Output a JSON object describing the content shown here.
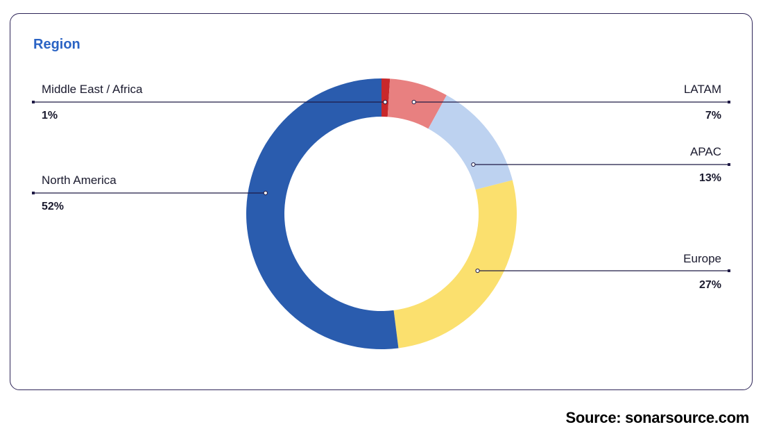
{
  "chart_data": {
    "type": "pie",
    "variant": "donut",
    "title": "Region",
    "slices": [
      {
        "label": "Middle East / Africa",
        "value": 1,
        "display": "1%",
        "color": "#c8282b"
      },
      {
        "label": "LATAM",
        "value": 7,
        "display": "7%",
        "color": "#e88080"
      },
      {
        "label": "APAC",
        "value": 13,
        "display": "13%",
        "color": "#bdd2f0"
      },
      {
        "label": "Europe",
        "value": 27,
        "display": "27%",
        "color": "#fbe06e"
      },
      {
        "label": "North America",
        "value": 52,
        "display": "52%",
        "color": "#2a5cae"
      }
    ]
  },
  "source": "Source: sonarsource.com"
}
